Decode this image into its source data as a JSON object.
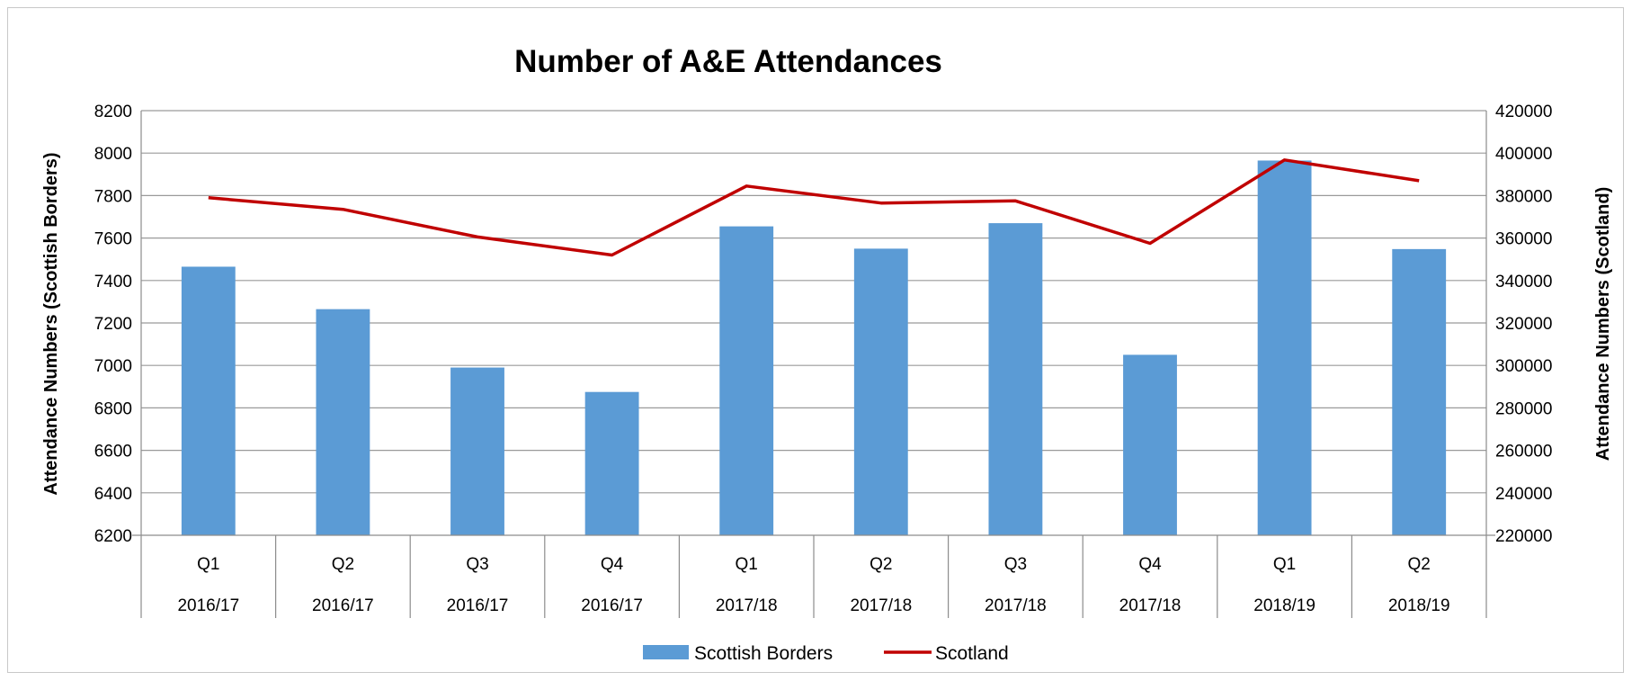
{
  "chart_data": {
    "type": "bar",
    "title": "Number of A&E Attendances",
    "categories": [
      [
        "Q1",
        "2016/17"
      ],
      [
        "Q2",
        "2016/17"
      ],
      [
        "Q3",
        "2016/17"
      ],
      [
        "Q4",
        "2016/17"
      ],
      [
        "Q1",
        "2017/18"
      ],
      [
        "Q2",
        "2017/18"
      ],
      [
        "Q3",
        "2017/18"
      ],
      [
        "Q4",
        "2017/18"
      ],
      [
        "Q1",
        "2018/19"
      ],
      [
        "Q2",
        "2018/19"
      ]
    ],
    "ylabel_left": "Attendance Numbers (Scottish Borders)",
    "ylabel_right": "Attendance Numbers (Scotland)",
    "ylim_left": [
      6200,
      8200
    ],
    "ylim_right": [
      220000,
      420000
    ],
    "yticks_left": [
      "6200",
      "6400",
      "6600",
      "6800",
      "7000",
      "7200",
      "7400",
      "7600",
      "7800",
      "8000",
      "8200"
    ],
    "yticks_right": [
      "220000",
      "240000",
      "260000",
      "280000",
      "300000",
      "320000",
      "340000",
      "360000",
      "380000",
      "400000",
      "420000"
    ],
    "grid": true,
    "legend_position": "bottom",
    "series": [
      {
        "name": "Scottish Borders",
        "type": "bar",
        "axis": "left",
        "color": "#5b9bd5",
        "values": [
          7465,
          7265,
          6990,
          6875,
          7655,
          7550,
          7670,
          7050,
          7965,
          7548
        ]
      },
      {
        "name": "Scotland",
        "type": "line",
        "axis": "right",
        "color": "#c00000",
        "values": [
          379000,
          373500,
          360500,
          352000,
          384500,
          376500,
          377500,
          357500,
          396800,
          387000
        ]
      }
    ]
  }
}
